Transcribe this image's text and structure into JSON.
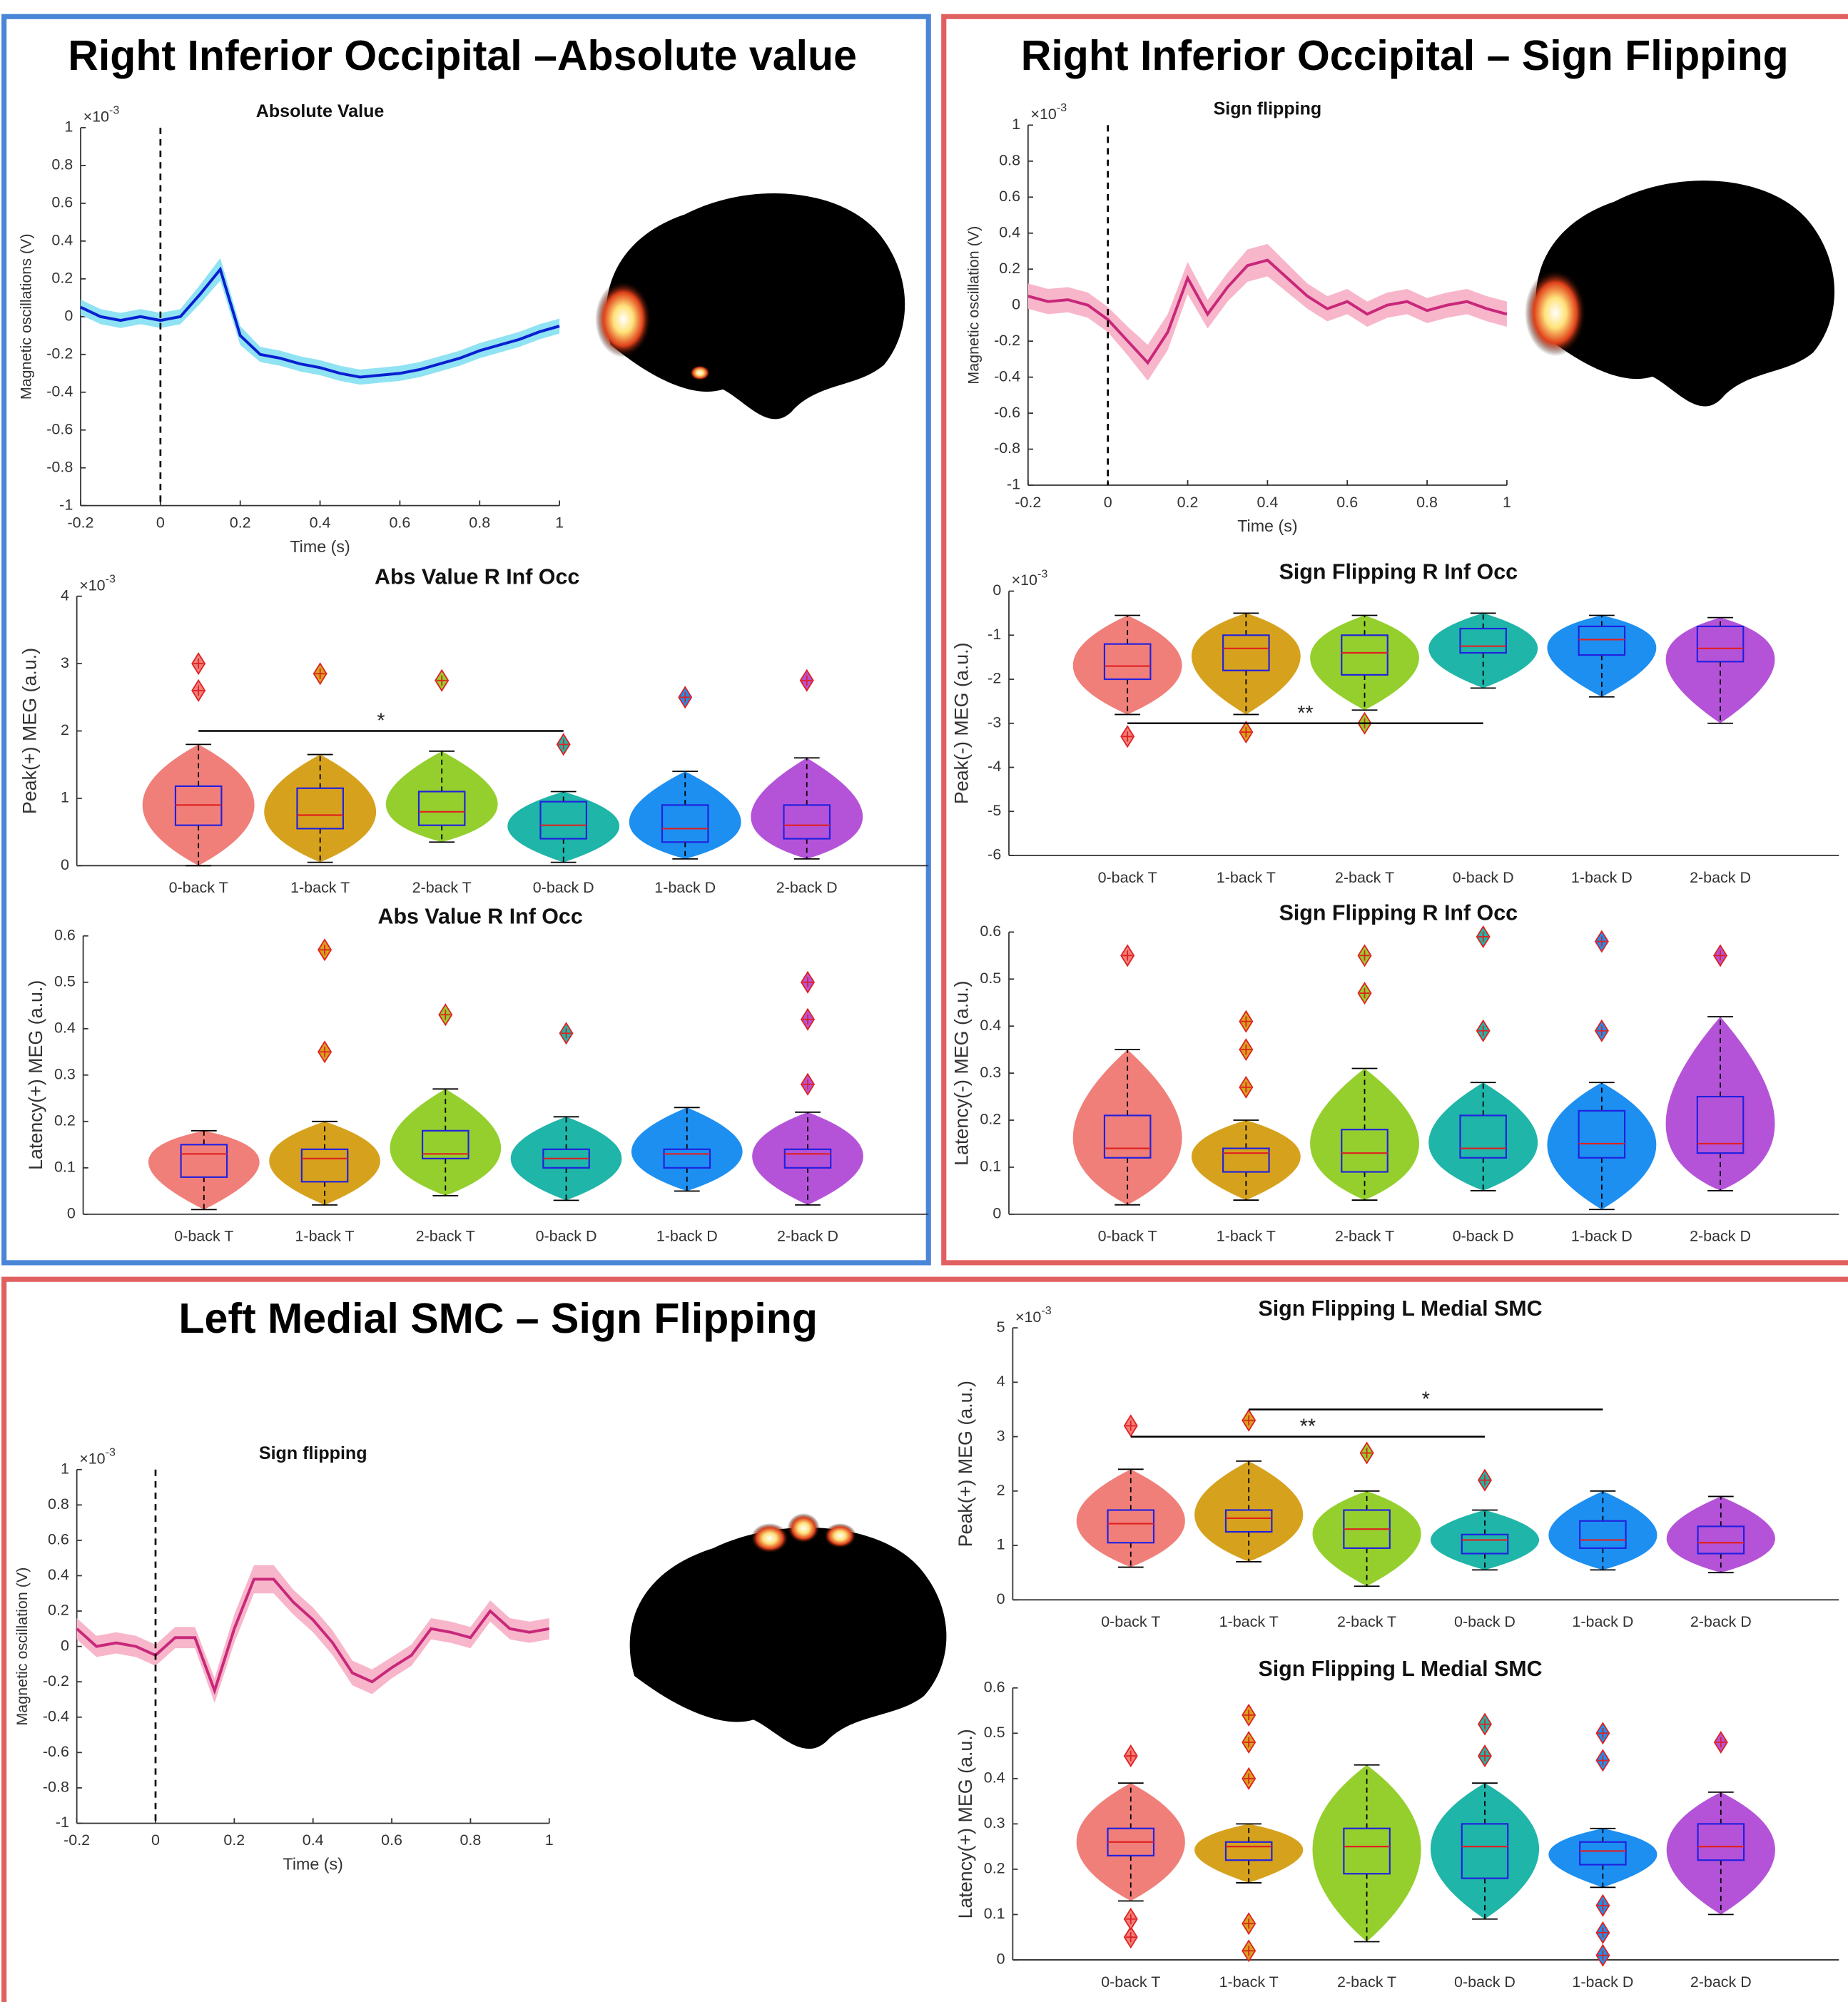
{
  "panel_titles": [
    "Right Inferior Occipital –Absolute value",
    "Right Inferior Occipital – Sign Flipping",
    "Left Medial SMC – Sign Flipping"
  ],
  "chart_data": [
    {
      "type": "line",
      "title": "Absolute Value",
      "xlabel": "Time (s)",
      "ylabel": "Magnetic oscillations (V)",
      "exponent": {
        "base": "×10",
        "power": "-3"
      },
      "color": "#0a1fd0",
      "band_color": "#8fe3f3",
      "vline": 0,
      "x": [
        -0.2,
        -0.15,
        -0.1,
        -0.05,
        0,
        0.05,
        0.1,
        0.15,
        0.2,
        0.25,
        0.3,
        0.35,
        0.4,
        0.45,
        0.5,
        0.55,
        0.6,
        0.65,
        0.7,
        0.75,
        0.8,
        0.85,
        0.9,
        0.95,
        1
      ],
      "values": [
        0.05,
        0.0,
        -0.02,
        0.0,
        -0.02,
        0.0,
        0.12,
        0.25,
        -0.1,
        -0.2,
        -0.22,
        -0.25,
        -0.27,
        -0.3,
        -0.32,
        -0.31,
        -0.3,
        -0.28,
        -0.25,
        -0.22,
        -0.18,
        -0.15,
        -0.12,
        -0.08,
        -0.05
      ],
      "errors": [
        0.04,
        0.04,
        0.04,
        0.04,
        0.04,
        0.04,
        0.05,
        0.06,
        0.05,
        0.04,
        0.04,
        0.04,
        0.04,
        0.04,
        0.04,
        0.04,
        0.04,
        0.04,
        0.04,
        0.04,
        0.04,
        0.04,
        0.04,
        0.04,
        0.04
      ],
      "xlim": [
        -0.2,
        1
      ],
      "xticks": [
        -0.2,
        0,
        0.2,
        0.4,
        0.6,
        0.8,
        1
      ],
      "ylim": [
        -1,
        1
      ],
      "yticks": [
        -1,
        -0.8,
        -0.6,
        -0.4,
        -0.2,
        0,
        0.2,
        0.4,
        0.6,
        0.8,
        1
      ]
    },
    {
      "type": "box",
      "title": "Abs Value R Inf Occ",
      "ylabel": "Peak(+) MEG (a.u.)",
      "exponent": {
        "base": "×10",
        "power": "-3"
      },
      "categories": [
        "0-back T",
        "1-back T",
        "2-back T",
        "0-back D",
        "1-back D",
        "2-back D"
      ],
      "colors": [
        "#f07f7a",
        "#d6a21e",
        "#95cf2e",
        "#1fb5a8",
        "#1d8ff0",
        "#b553d8"
      ],
      "boxes": [
        {
          "q1": 0.6,
          "median": 0.9,
          "q3": 1.18,
          "whisker_low": 0,
          "whisker_high": 1.8,
          "outliers": [
            2.6,
            3.0
          ]
        },
        {
          "q1": 0.55,
          "median": 0.75,
          "q3": 1.15,
          "whisker_low": 0.05,
          "whisker_high": 1.65,
          "outliers": [
            2.85
          ]
        },
        {
          "q1": 0.6,
          "median": 0.8,
          "q3": 1.1,
          "whisker_low": 0.35,
          "whisker_high": 1.7,
          "outliers": [
            2.75
          ]
        },
        {
          "q1": 0.4,
          "median": 0.6,
          "q3": 0.95,
          "whisker_low": 0.05,
          "whisker_high": 1.1,
          "outliers": [
            1.8
          ]
        },
        {
          "q1": 0.35,
          "median": 0.55,
          "q3": 0.9,
          "whisker_low": 0.1,
          "whisker_high": 1.4,
          "outliers": [
            2.5
          ]
        },
        {
          "q1": 0.4,
          "median": 0.6,
          "q3": 0.9,
          "whisker_low": 0.1,
          "whisker_high": 1.6,
          "outliers": [
            2.75
          ]
        }
      ],
      "significance": [
        {
          "from": "0-back T",
          "to": "0-back D",
          "y": 2,
          "label": "*"
        }
      ],
      "ylim": [
        0,
        4
      ],
      "yticks": [
        0,
        1,
        2,
        3,
        4
      ]
    },
    {
      "type": "box",
      "title": "Abs Value R Inf Occ",
      "ylabel": "Latency(+) MEG (a.u.)",
      "categories": [
        "0-back T",
        "1-back T",
        "2-back T",
        "0-back D",
        "1-back D",
        "2-back D"
      ],
      "colors": [
        "#f07f7a",
        "#d6a21e",
        "#95cf2e",
        "#1fb5a8",
        "#1d8ff0",
        "#b553d8"
      ],
      "boxes": [
        {
          "q1": 0.08,
          "median": 0.13,
          "q3": 0.15,
          "whisker_low": 0.01,
          "whisker_high": 0.18,
          "outliers": []
        },
        {
          "q1": 0.07,
          "median": 0.12,
          "q3": 0.14,
          "whisker_low": 0.02,
          "whisker_high": 0.2,
          "outliers": [
            0.35,
            0.57
          ]
        },
        {
          "q1": 0.12,
          "median": 0.13,
          "q3": 0.18,
          "whisker_low": 0.04,
          "whisker_high": 0.27,
          "outliers": [
            0.43
          ]
        },
        {
          "q1": 0.1,
          "median": 0.12,
          "q3": 0.14,
          "whisker_low": 0.03,
          "whisker_high": 0.21,
          "outliers": [
            0.39
          ]
        },
        {
          "q1": 0.1,
          "median": 0.13,
          "q3": 0.14,
          "whisker_low": 0.05,
          "whisker_high": 0.23,
          "outliers": []
        },
        {
          "q1": 0.1,
          "median": 0.13,
          "q3": 0.14,
          "whisker_low": 0.02,
          "whisker_high": 0.22,
          "outliers": [
            0.28,
            0.42,
            0.5
          ]
        }
      ],
      "ylim": [
        0,
        0.6
      ],
      "yticks": [
        0,
        0.1,
        0.2,
        0.3,
        0.4,
        0.5,
        0.6
      ]
    },
    {
      "type": "line",
      "title": "Sign flipping",
      "xlabel": "Time (s)",
      "ylabel": "Magnetic oscillation (V)",
      "exponent": {
        "base": "×10",
        "power": "-3"
      },
      "color": "#c8287a",
      "band_color": "#f8b6cb",
      "vline": 0,
      "x": [
        -0.2,
        -0.15,
        -0.1,
        -0.05,
        0,
        0.05,
        0.1,
        0.15,
        0.2,
        0.25,
        0.3,
        0.35,
        0.4,
        0.45,
        0.5,
        0.55,
        0.6,
        0.65,
        0.7,
        0.75,
        0.8,
        0.85,
        0.9,
        0.95,
        1
      ],
      "values": [
        0.05,
        0.02,
        0.03,
        0.0,
        -0.08,
        -0.2,
        -0.32,
        -0.15,
        0.15,
        -0.05,
        0.1,
        0.22,
        0.25,
        0.15,
        0.05,
        -0.02,
        0.02,
        -0.05,
        0.0,
        0.02,
        -0.03,
        0.0,
        0.02,
        -0.02,
        -0.05
      ],
      "errors": [
        0.07,
        0.07,
        0.07,
        0.07,
        0.07,
        0.08,
        0.1,
        0.1,
        0.09,
        0.08,
        0.08,
        0.09,
        0.09,
        0.08,
        0.07,
        0.07,
        0.07,
        0.07,
        0.07,
        0.07,
        0.07,
        0.07,
        0.07,
        0.07,
        0.07
      ],
      "xlim": [
        -0.2,
        1
      ],
      "xticks": [
        -0.2,
        0,
        0.2,
        0.4,
        0.6,
        0.8,
        1
      ],
      "ylim": [
        -1,
        1
      ],
      "yticks": [
        -1,
        -0.8,
        -0.6,
        -0.4,
        -0.2,
        0,
        0.2,
        0.4,
        0.6,
        0.8,
        1
      ]
    },
    {
      "type": "box",
      "title": "Sign Flipping R Inf Occ",
      "ylabel": "Peak(-) MEG (a.u.)",
      "exponent": {
        "base": "×10",
        "power": "-3"
      },
      "categories": [
        "0-back T",
        "1-back T",
        "2-back T",
        "0-back D",
        "1-back D",
        "2-back D"
      ],
      "colors": [
        "#f07f7a",
        "#d6a21e",
        "#95cf2e",
        "#1fb5a8",
        "#1d8ff0",
        "#b553d8"
      ],
      "boxes": [
        {
          "q1": -2.0,
          "median": -1.7,
          "q3": -1.2,
          "whisker_low": -2.8,
          "whisker_high": -0.55,
          "outliers": [
            -3.3
          ]
        },
        {
          "q1": -1.8,
          "median": -1.3,
          "q3": -1.0,
          "whisker_low": -2.8,
          "whisker_high": -0.5,
          "outliers": [
            -3.2
          ]
        },
        {
          "q1": -1.9,
          "median": -1.4,
          "q3": -1.0,
          "whisker_low": -2.7,
          "whisker_high": -0.55,
          "outliers": [
            -3.0
          ]
        },
        {
          "q1": -1.4,
          "median": -1.25,
          "q3": -0.85,
          "whisker_low": -2.2,
          "whisker_high": -0.5,
          "outliers": []
        },
        {
          "q1": -1.45,
          "median": -1.1,
          "q3": -0.8,
          "whisker_low": -2.4,
          "whisker_high": -0.55,
          "outliers": []
        },
        {
          "q1": -1.6,
          "median": -1.3,
          "q3": -0.8,
          "whisker_low": -3.0,
          "whisker_high": -0.6,
          "outliers": []
        }
      ],
      "significance": [
        {
          "from": "0-back T",
          "to": "0-back D",
          "y": -3,
          "label": "**"
        }
      ],
      "ylim": [
        -6,
        0
      ],
      "yticks": [
        -6,
        -5,
        -4,
        -3,
        -2,
        -1,
        0
      ]
    },
    {
      "type": "box",
      "title": "Sign Flipping R Inf Occ",
      "ylabel": "Latency(-) MEG (a.u.)",
      "categories": [
        "0-back T",
        "1-back T",
        "2-back T",
        "0-back D",
        "1-back D",
        "2-back D"
      ],
      "colors": [
        "#f07f7a",
        "#d6a21e",
        "#95cf2e",
        "#1fb5a8",
        "#1d8ff0",
        "#b553d8"
      ],
      "boxes": [
        {
          "q1": 0.12,
          "median": 0.14,
          "q3": 0.21,
          "whisker_low": 0.02,
          "whisker_high": 0.35,
          "outliers": [
            0.55
          ]
        },
        {
          "q1": 0.09,
          "median": 0.13,
          "q3": 0.14,
          "whisker_low": 0.03,
          "whisker_high": 0.2,
          "outliers": [
            0.27,
            0.35,
            0.41
          ]
        },
        {
          "q1": 0.09,
          "median": 0.13,
          "q3": 0.18,
          "whisker_low": 0.03,
          "whisker_high": 0.31,
          "outliers": [
            0.47,
            0.55
          ]
        },
        {
          "q1": 0.12,
          "median": 0.14,
          "q3": 0.21,
          "whisker_low": 0.05,
          "whisker_high": 0.28,
          "outliers": [
            0.39,
            0.59
          ]
        },
        {
          "q1": 0.12,
          "median": 0.15,
          "q3": 0.22,
          "whisker_low": 0.01,
          "whisker_high": 0.28,
          "outliers": [
            0.39,
            0.58
          ]
        },
        {
          "q1": 0.13,
          "median": 0.15,
          "q3": 0.25,
          "whisker_low": 0.05,
          "whisker_high": 0.42,
          "outliers": [
            0.55
          ]
        }
      ],
      "ylim": [
        0,
        0.6
      ],
      "yticks": [
        0,
        0.1,
        0.2,
        0.3,
        0.4,
        0.5,
        0.6
      ]
    },
    {
      "type": "line",
      "title": "Sign flipping",
      "xlabel": "Time (s)",
      "ylabel": "Magnetic oscillation (V)",
      "exponent": {
        "base": "×10",
        "power": "-3"
      },
      "color": "#c8287a",
      "band_color": "#f8b6cb",
      "vline": 0,
      "x": [
        -0.2,
        -0.15,
        -0.1,
        -0.05,
        0,
        0.05,
        0.1,
        0.15,
        0.2,
        0.25,
        0.3,
        0.35,
        0.4,
        0.45,
        0.5,
        0.55,
        0.6,
        0.65,
        0.7,
        0.75,
        0.8,
        0.85,
        0.9,
        0.95,
        1
      ],
      "values": [
        0.1,
        0.0,
        0.02,
        0.0,
        -0.05,
        0.05,
        0.05,
        -0.25,
        0.1,
        0.38,
        0.38,
        0.25,
        0.15,
        0.02,
        -0.15,
        -0.2,
        -0.12,
        -0.05,
        0.1,
        0.08,
        0.05,
        0.2,
        0.1,
        0.08,
        0.1
      ],
      "errors": [
        0.06,
        0.06,
        0.06,
        0.06,
        0.06,
        0.06,
        0.06,
        0.07,
        0.08,
        0.08,
        0.08,
        0.07,
        0.07,
        0.07,
        0.07,
        0.07,
        0.06,
        0.06,
        0.06,
        0.06,
        0.06,
        0.06,
        0.06,
        0.06,
        0.06
      ],
      "xlim": [
        -0.2,
        1
      ],
      "xticks": [
        -0.2,
        0,
        0.2,
        0.4,
        0.6,
        0.8,
        1
      ],
      "ylim": [
        -1,
        1
      ],
      "yticks": [
        -1,
        -0.8,
        -0.6,
        -0.4,
        -0.2,
        0,
        0.2,
        0.4,
        0.6,
        0.8,
        1
      ]
    },
    {
      "type": "box",
      "title": "Sign Flipping L Medial SMC",
      "ylabel": "Peak(+) MEG (a.u.)",
      "exponent": {
        "base": "×10",
        "power": "-3"
      },
      "categories": [
        "0-back T",
        "1-back T",
        "2-back T",
        "0-back D",
        "1-back D",
        "2-back D"
      ],
      "colors": [
        "#f07f7a",
        "#d6a21e",
        "#95cf2e",
        "#1fb5a8",
        "#1d8ff0",
        "#b553d8"
      ],
      "boxes": [
        {
          "q1": 1.05,
          "median": 1.4,
          "q3": 1.65,
          "whisker_low": 0.6,
          "whisker_high": 2.4,
          "outliers": [
            3.2
          ]
        },
        {
          "q1": 1.25,
          "median": 1.5,
          "q3": 1.65,
          "whisker_low": 0.7,
          "whisker_high": 2.55,
          "outliers": [
            3.3
          ]
        },
        {
          "q1": 0.95,
          "median": 1.3,
          "q3": 1.65,
          "whisker_low": 0.25,
          "whisker_high": 2.0,
          "outliers": [
            2.7
          ]
        },
        {
          "q1": 0.85,
          "median": 1.1,
          "q3": 1.2,
          "whisker_low": 0.55,
          "whisker_high": 1.65,
          "outliers": [
            2.2
          ]
        },
        {
          "q1": 0.95,
          "median": 1.1,
          "q3": 1.45,
          "whisker_low": 0.55,
          "whisker_high": 2.0,
          "outliers": []
        },
        {
          "q1": 0.85,
          "median": 1.05,
          "q3": 1.35,
          "whisker_low": 0.5,
          "whisker_high": 1.9,
          "outliers": []
        }
      ],
      "significance": [
        {
          "from": "0-back T",
          "to": "0-back D",
          "y": 3,
          "label": "**"
        },
        {
          "from": "1-back T",
          "to": "1-back D",
          "y": 3.5,
          "label": "*"
        }
      ],
      "ylim": [
        0,
        5
      ],
      "yticks": [
        0,
        1,
        2,
        3,
        4,
        5
      ]
    },
    {
      "type": "box",
      "title": "Sign Flipping L Medial SMC",
      "ylabel": "Latency(+) MEG (a.u.)",
      "categories": [
        "0-back T",
        "1-back T",
        "2-back T",
        "0-back D",
        "1-back D",
        "2-back D"
      ],
      "colors": [
        "#f07f7a",
        "#d6a21e",
        "#95cf2e",
        "#1fb5a8",
        "#1d8ff0",
        "#b553d8"
      ],
      "boxes": [
        {
          "q1": 0.23,
          "median": 0.26,
          "q3": 0.29,
          "whisker_low": 0.13,
          "whisker_high": 0.39,
          "outliers": [
            0.05,
            0.09,
            0.45
          ]
        },
        {
          "q1": 0.22,
          "median": 0.25,
          "q3": 0.26,
          "whisker_low": 0.17,
          "whisker_high": 0.3,
          "outliers": [
            0.02,
            0.08,
            0.4,
            0.48,
            0.54
          ]
        },
        {
          "q1": 0.19,
          "median": 0.25,
          "q3": 0.29,
          "whisker_low": 0.04,
          "whisker_high": 0.43,
          "outliers": []
        },
        {
          "q1": 0.18,
          "median": 0.25,
          "q3": 0.3,
          "whisker_low": 0.09,
          "whisker_high": 0.39,
          "outliers": [
            0.45,
            0.52
          ]
        },
        {
          "q1": 0.21,
          "median": 0.24,
          "q3": 0.26,
          "whisker_low": 0.16,
          "whisker_high": 0.29,
          "outliers": [
            0.01,
            0.06,
            0.12,
            0.44,
            0.5
          ]
        },
        {
          "q1": 0.22,
          "median": 0.25,
          "q3": 0.3,
          "whisker_low": 0.1,
          "whisker_high": 0.37,
          "outliers": [
            0.48
          ]
        }
      ],
      "ylim": [
        0,
        0.6
      ],
      "yticks": [
        0,
        0.1,
        0.2,
        0.3,
        0.4,
        0.5,
        0.6
      ]
    }
  ]
}
